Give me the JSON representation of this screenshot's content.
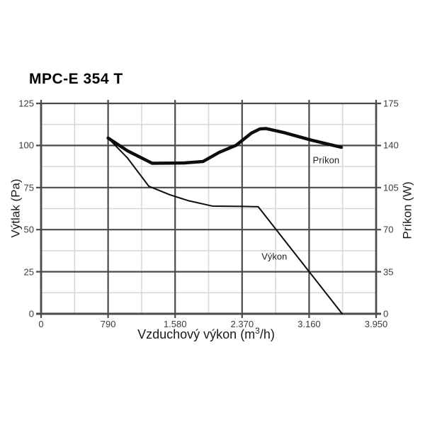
{
  "page": {
    "title": "MPC-E 354 T"
  },
  "chart_data": {
    "type": "line",
    "title": "MPC-E 354 T",
    "xlabel": "Vzduchový výkon (m³/h)",
    "xlabel_parts": {
      "pre": "Vzduchový výkon (m",
      "sup": "3",
      "post": "/h)"
    },
    "ylabel_left": "Výtlak (Pa)",
    "ylabel_right": "Príkon (W)",
    "xlim": [
      0,
      3950
    ],
    "ylim_left": [
      0,
      125
    ],
    "ylim_right": [
      0,
      175
    ],
    "x_ticks": {
      "values": [
        0,
        790,
        1580,
        2370,
        3160,
        3950
      ],
      "labels": [
        "0",
        "790",
        "1.580",
        "2.370",
        "3.160",
        "3.950"
      ]
    },
    "y_ticks_left": {
      "values": [
        0,
        25,
        50,
        75,
        100,
        125
      ],
      "labels": [
        "0",
        "25",
        "50",
        "75",
        "100",
        "125"
      ]
    },
    "y_ticks_right": {
      "values": [
        0,
        35,
        70,
        105,
        140,
        175
      ],
      "labels": [
        "0",
        "35",
        "70",
        "105",
        "140",
        "175"
      ]
    },
    "grid": {
      "major": true,
      "minor": true
    },
    "legend_position": "inline-labels",
    "colors": {
      "curve": "#0d0d0d",
      "grid_major": "#4a4a4a",
      "grid_minor": "#d8d8d8",
      "tick_text": "#3c3c3c",
      "title_text": "#000000"
    },
    "series": [
      {
        "name": "Príkon",
        "axis": "right",
        "unit": "W",
        "line_width": 4.5,
        "label_at": {
          "x": 3360,
          "y": 128
        },
        "points": [
          [
            790,
            146.2
          ],
          [
            1020,
            135.5
          ],
          [
            1310,
            125.2
          ],
          [
            1690,
            125.5
          ],
          [
            1910,
            126.7
          ],
          [
            2100,
            134.3
          ],
          [
            2300,
            140.2
          ],
          [
            2480,
            150.3
          ],
          [
            2580,
            153.8
          ],
          [
            2650,
            154.1
          ],
          [
            2860,
            150.8
          ],
          [
            3190,
            144.4
          ],
          [
            3540,
            138.5
          ]
        ]
      },
      {
        "name": "Výkon",
        "axis": "left",
        "unit": "Pa",
        "line_width": 2,
        "label_at": {
          "x": 2750,
          "y": 34.3
        },
        "points": [
          [
            790,
            104.4
          ],
          [
            1020,
            92.5
          ],
          [
            1270,
            75.8
          ],
          [
            1520,
            70.7
          ],
          [
            1730,
            67.3
          ],
          [
            2020,
            64.0
          ],
          [
            2360,
            63.8
          ],
          [
            2560,
            63.6
          ],
          [
            3550,
            0
          ]
        ]
      }
    ]
  }
}
